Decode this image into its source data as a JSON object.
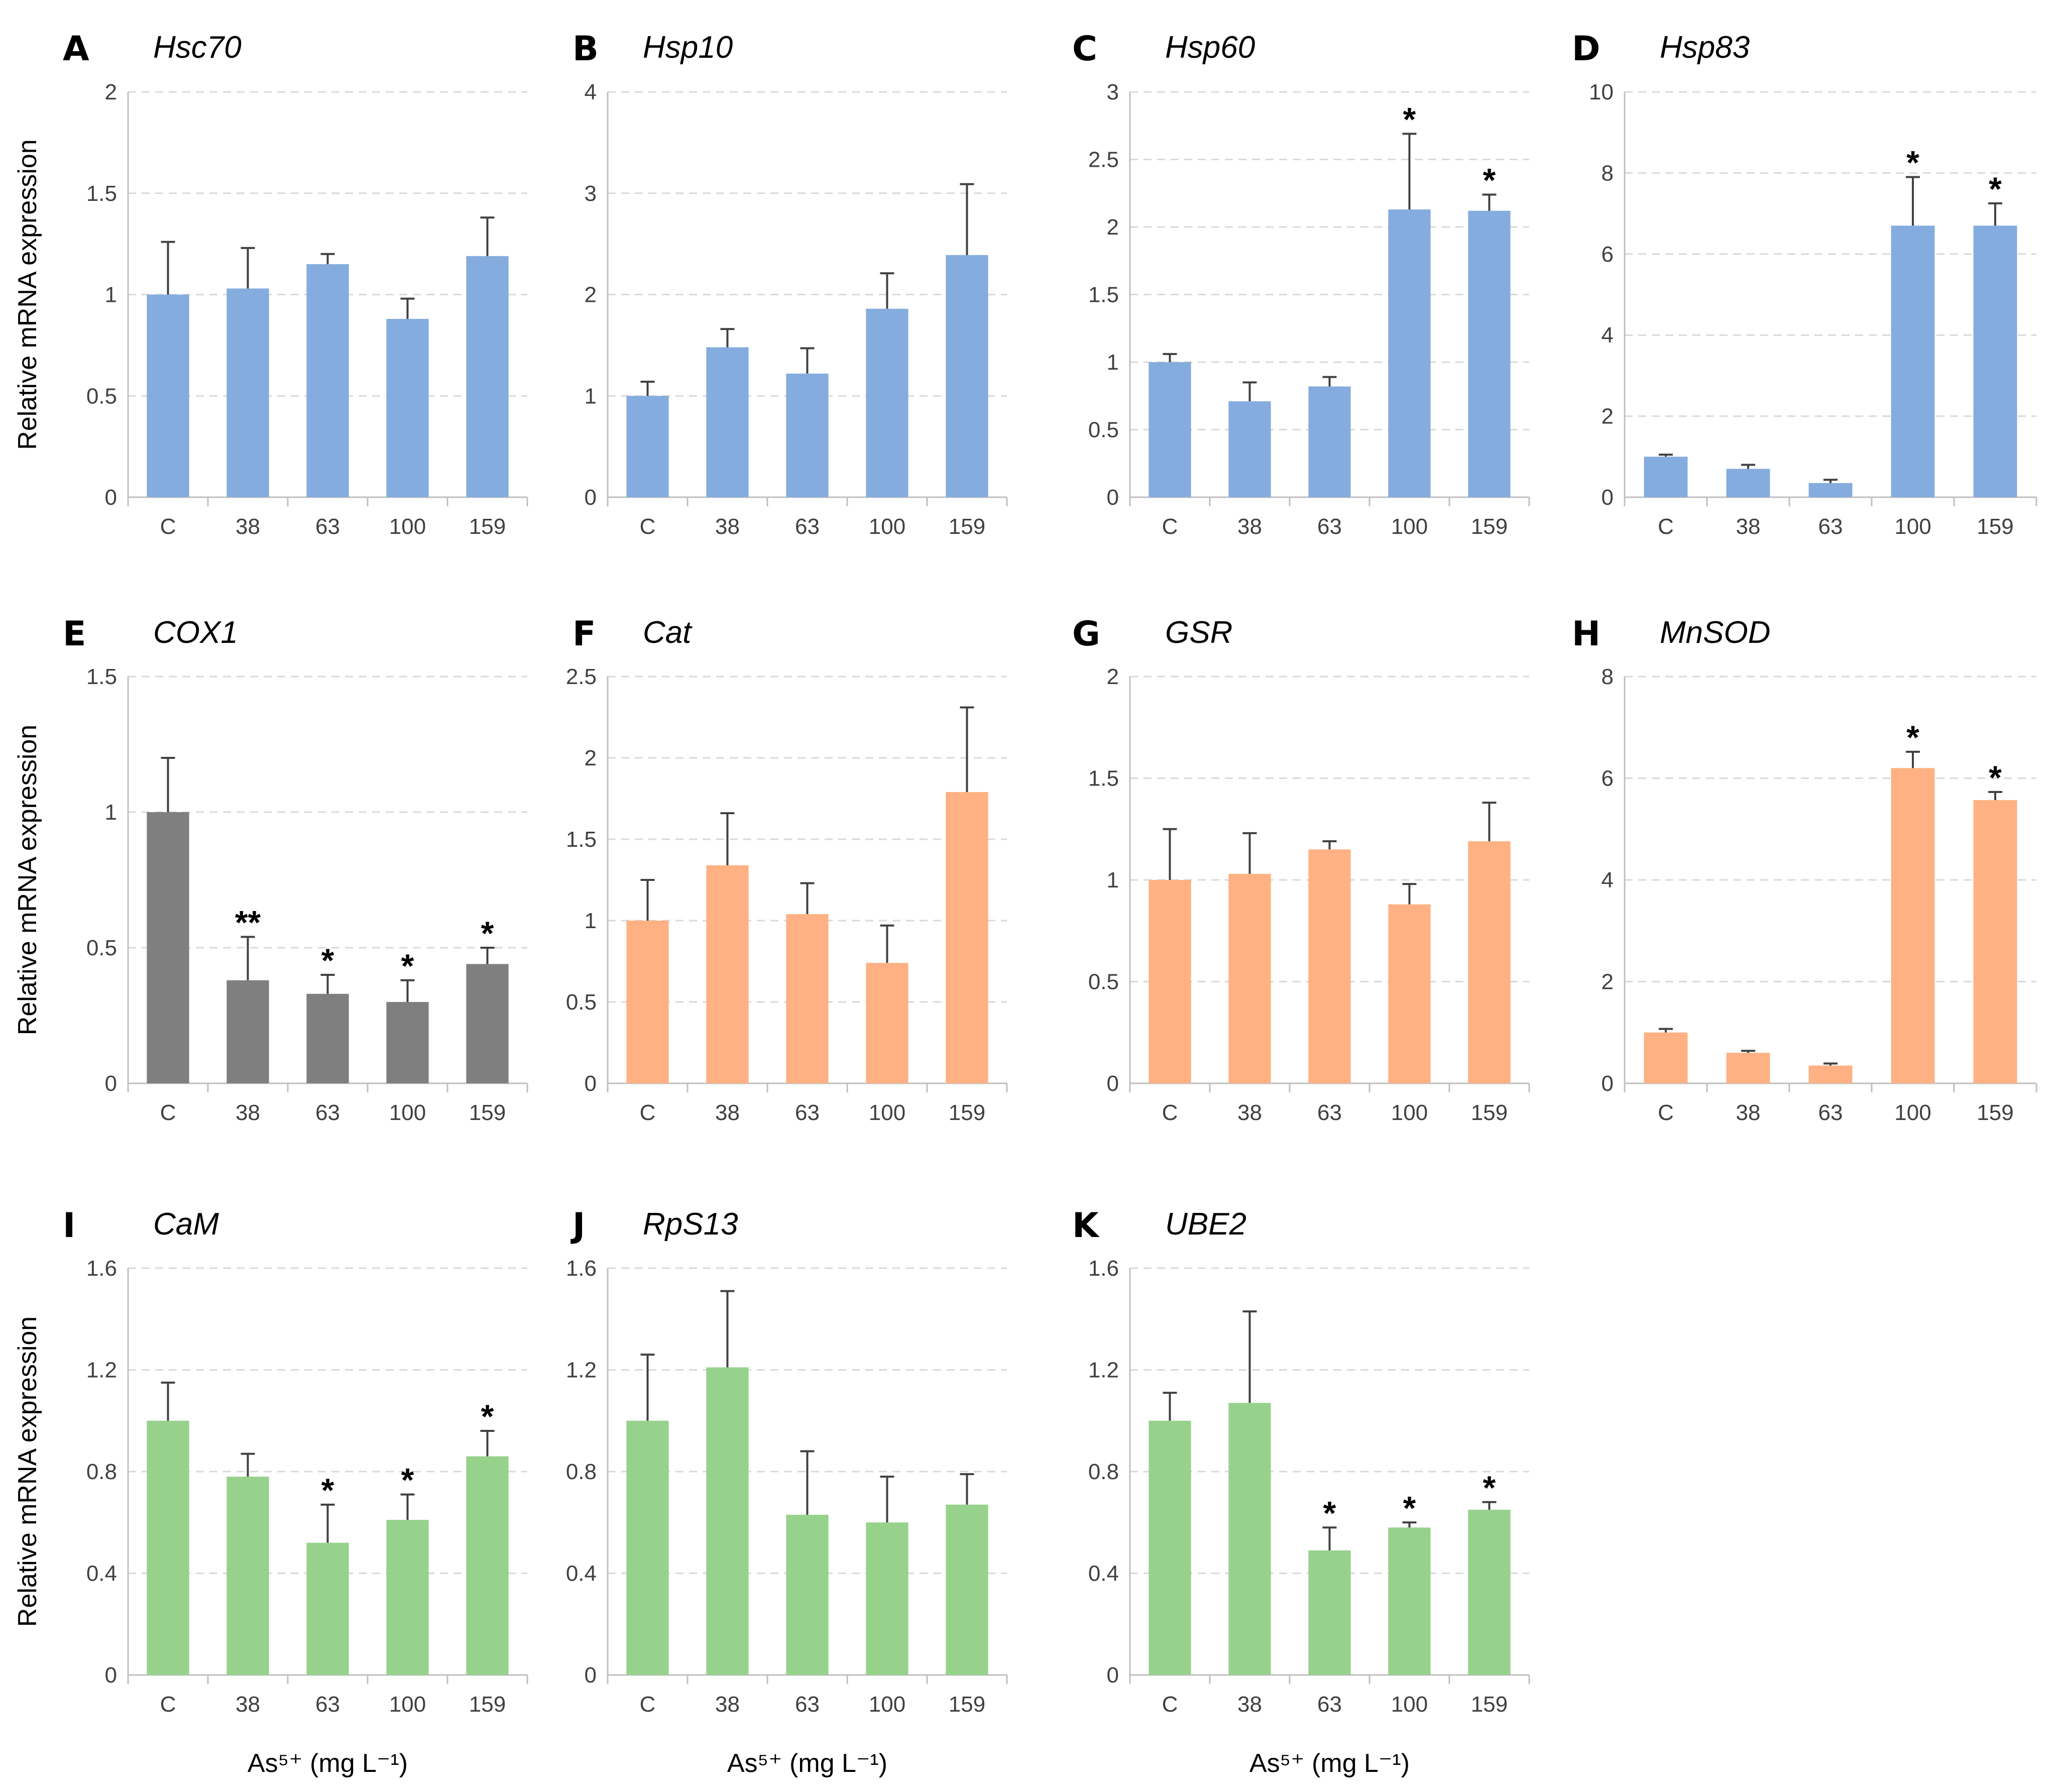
{
  "ylabel_text": "Relative mRNA expression",
  "xunit": "As⁵⁺ (mg L⁻¹)",
  "categories": [
    "C",
    "38",
    "63",
    "100",
    "159"
  ],
  "colors": {
    "blue": "#85ACDE",
    "gray": "#7F7F7F",
    "orange": "#FFB183",
    "green": "#96D28C",
    "error": "#404040",
    "grid": "#D9D9D9",
    "axis": "#BFBFBF"
  },
  "chart_data": [
    {
      "type": "bar",
      "letter": "A",
      "title": "Hsc70",
      "color": "blue",
      "ylim": [
        0,
        2
      ],
      "yticks": [
        "0",
        "0.5",
        "1",
        "1.5",
        "2"
      ],
      "values": [
        1.0,
        1.03,
        1.15,
        0.88,
        1.19
      ],
      "errors": [
        0.26,
        0.2,
        0.05,
        0.1,
        0.19
      ],
      "sig": [
        "",
        "",
        "",
        "",
        ""
      ]
    },
    {
      "type": "bar",
      "letter": "B",
      "title": "Hsp10",
      "color": "blue",
      "ylim": [
        0,
        4
      ],
      "yticks": [
        "0",
        "1",
        "2",
        "3",
        "4"
      ],
      "values": [
        1.0,
        1.48,
        1.22,
        1.86,
        2.39
      ],
      "errors": [
        0.14,
        0.18,
        0.25,
        0.35,
        0.7
      ],
      "sig": [
        "",
        "",
        "",
        "",
        ""
      ]
    },
    {
      "type": "bar",
      "letter": "C",
      "title": "Hsp60",
      "color": "blue",
      "ylim": [
        0,
        3
      ],
      "yticks": [
        "0",
        "0.5",
        "1",
        "1.5",
        "2",
        "2.5",
        "3"
      ],
      "values": [
        1.0,
        0.71,
        0.82,
        2.13,
        2.12
      ],
      "errors": [
        0.06,
        0.14,
        0.07,
        0.56,
        0.12
      ],
      "sig": [
        "",
        "",
        "",
        "*",
        "*"
      ]
    },
    {
      "type": "bar",
      "letter": "D",
      "title": "Hsp83",
      "color": "blue",
      "ylim": [
        0,
        10
      ],
      "yticks": [
        "0",
        "2",
        "4",
        "6",
        "8",
        "10"
      ],
      "values": [
        1.0,
        0.7,
        0.35,
        6.7,
        6.7
      ],
      "errors": [
        0.05,
        0.1,
        0.08,
        1.2,
        0.55
      ],
      "sig": [
        "",
        "",
        "",
        "*",
        "*"
      ]
    },
    {
      "type": "bar",
      "letter": "E",
      "title": "COX1",
      "color": "gray",
      "ylim": [
        0,
        1.5
      ],
      "yticks": [
        "0",
        "0.5",
        "1",
        "1.5"
      ],
      "values": [
        1.0,
        0.38,
        0.33,
        0.3,
        0.44
      ],
      "errors": [
        0.2,
        0.16,
        0.07,
        0.08,
        0.06
      ],
      "sig": [
        "",
        "**",
        "*",
        "*",
        "*"
      ]
    },
    {
      "type": "bar",
      "letter": "F",
      "title": "Cat",
      "color": "orange",
      "ylim": [
        0,
        2.5
      ],
      "yticks": [
        "0",
        "0.5",
        "1",
        "1.5",
        "2",
        "2.5"
      ],
      "values": [
        1.0,
        1.34,
        1.04,
        0.74,
        1.79
      ],
      "errors": [
        0.25,
        0.32,
        0.19,
        0.23,
        0.52
      ],
      "sig": [
        "",
        "",
        "",
        "",
        ""
      ]
    },
    {
      "type": "bar",
      "letter": "G",
      "title": "GSR",
      "color": "orange",
      "ylim": [
        0,
        2
      ],
      "yticks": [
        "0",
        "0.5",
        "1",
        "1.5",
        "2"
      ],
      "values": [
        1.0,
        1.03,
        1.15,
        0.88,
        1.19
      ],
      "errors": [
        0.25,
        0.2,
        0.04,
        0.1,
        0.19
      ],
      "sig": [
        "",
        "",
        "",
        "",
        ""
      ]
    },
    {
      "type": "bar",
      "letter": "H",
      "title": "MnSOD",
      "color": "orange",
      "ylim": [
        0,
        8
      ],
      "yticks": [
        "0",
        "2",
        "4",
        "6",
        "8"
      ],
      "values": [
        1.0,
        0.6,
        0.35,
        6.2,
        5.57
      ],
      "errors": [
        0.07,
        0.04,
        0.04,
        0.32,
        0.16
      ],
      "sig": [
        "",
        "",
        "",
        "*",
        "*"
      ]
    },
    {
      "type": "bar",
      "letter": "I",
      "title": "CaM",
      "color": "green",
      "ylim": [
        0,
        1.6
      ],
      "yticks": [
        "0",
        "0.4",
        "0.8",
        "1.2",
        "1.6"
      ],
      "values": [
        1.0,
        0.78,
        0.52,
        0.61,
        0.86
      ],
      "errors": [
        0.15,
        0.09,
        0.15,
        0.1,
        0.1
      ],
      "sig": [
        "",
        "",
        "*",
        "*",
        "*"
      ]
    },
    {
      "type": "bar",
      "letter": "J",
      "title": "RpS13",
      "color": "green",
      "ylim": [
        0,
        1.6
      ],
      "yticks": [
        "0",
        "0.4",
        "0.8",
        "1.2",
        "1.6"
      ],
      "values": [
        1.0,
        1.21,
        0.63,
        0.6,
        0.67
      ],
      "errors": [
        0.26,
        0.3,
        0.25,
        0.18,
        0.12
      ],
      "sig": [
        "",
        "",
        "",
        "",
        ""
      ]
    },
    {
      "type": "bar",
      "letter": "K",
      "title": "UBE2",
      "color": "green",
      "ylim": [
        0,
        1.6
      ],
      "yticks": [
        "0",
        "0.4",
        "0.8",
        "1.2",
        "1.6"
      ],
      "values": [
        1.0,
        1.07,
        0.49,
        0.58,
        0.65
      ],
      "errors": [
        0.11,
        0.36,
        0.09,
        0.02,
        0.03
      ],
      "sig": [
        "",
        "",
        "*",
        "*",
        "*"
      ]
    }
  ]
}
